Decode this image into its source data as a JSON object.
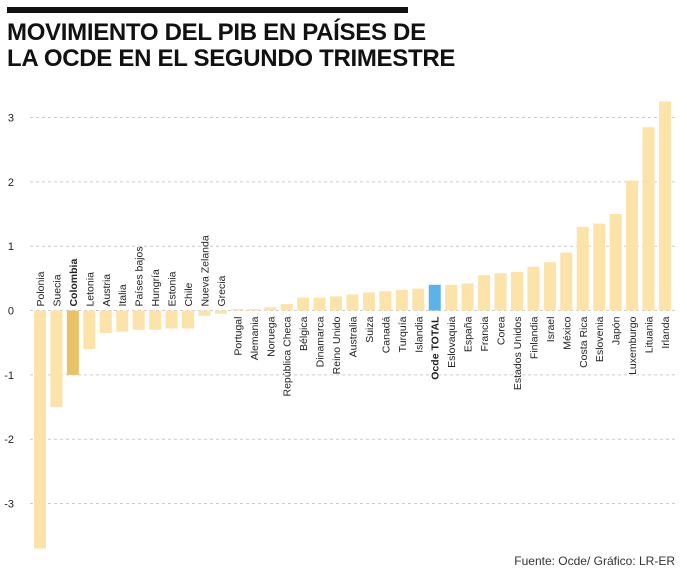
{
  "header": {
    "title_line1": "MOVIMIENTO DEL PIB EN PAÍSES DE",
    "title_line2": "LA OCDE EN EL SEGUNDO TRIMESTRE"
  },
  "source": "Fuente: Ocde/ Gráfico: LR-ER",
  "colors": {
    "bar": "#fbe3aa",
    "highlight_colombia": "#e8c266",
    "highlight_ocde": "#5bb4e5",
    "grid": "#cccccc",
    "text": "#222222"
  },
  "chart_data": {
    "type": "bar",
    "title": "MOVIMIENTO DEL PIB EN PAÍSES DE LA OCDE EN EL SEGUNDO TRIMESTRE",
    "ylim": [
      -3.8,
      3.35
    ],
    "yticks": [
      -3,
      -2,
      -1,
      0,
      1,
      2,
      3
    ],
    "grid": true,
    "categories": [
      "Polonia",
      "Suecia",
      "Colombia",
      "Letonia",
      "Austria",
      "Italia",
      "Países bajos",
      "Hungría",
      "Estonia",
      "Chile",
      "Nueva Zelanda",
      "Grecia",
      "Portugal",
      "Alemania",
      "Noruega",
      "República Checa",
      "Bélgica",
      "Dinamarca",
      "Reino Unido",
      "Australia",
      "Suiza",
      "Canadá",
      "Turquía",
      "Islandia",
      "Ocde TOTAL",
      "Eslovaquia",
      "España",
      "Francia",
      "Corea",
      "Estados Unidos",
      "Finlandia",
      "Israel",
      "México",
      "Costa Rica",
      "Eslovenia",
      "Japón",
      "Luxemburgo",
      "Lituania",
      "Irlanda"
    ],
    "values": [
      -3.7,
      -1.5,
      -1.0,
      -0.6,
      -0.35,
      -0.33,
      -0.3,
      -0.3,
      -0.28,
      -0.28,
      -0.08,
      -0.05,
      0.0,
      0.02,
      0.05,
      0.1,
      0.2,
      0.2,
      0.22,
      0.25,
      0.28,
      0.3,
      0.32,
      0.34,
      0.4,
      0.4,
      0.42,
      0.55,
      0.58,
      0.6,
      0.68,
      0.75,
      0.9,
      1.3,
      1.35,
      1.5,
      2.02,
      2.85,
      3.25
    ],
    "highlighted": [
      "Colombia",
      "Ocde TOTAL"
    ]
  }
}
